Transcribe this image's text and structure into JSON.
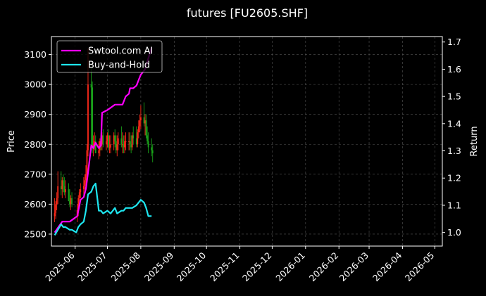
{
  "chart_data": {
    "type": "line",
    "title": "futures [FU2605.SHF]",
    "ylabel_left": "Price",
    "ylabel_right": "Return",
    "ylim_left": [
      2460,
      3160
    ],
    "ylim_right": [
      0.95,
      1.72
    ],
    "xlim": [
      "2025-05-10",
      "2026-05-08"
    ],
    "grid": true,
    "legend_location": "top-left",
    "x_ticks": [
      "2025-06",
      "2025-07",
      "2025-08",
      "2025-09",
      "2025-10",
      "2025-11",
      "2025-12",
      "2026-01",
      "2026-02",
      "2026-03",
      "2026-04",
      "2026-05"
    ],
    "y_ticks_left": [
      2500,
      2600,
      2700,
      2800,
      2900,
      3000,
      3100
    ],
    "y_ticks_right": [
      1.0,
      1.1,
      1.2,
      1.3,
      1.4,
      1.5,
      1.6,
      1.7
    ],
    "colors": {
      "up": "#ff2a1a",
      "down": "#1aa31a",
      "strategy": "#ff00ff",
      "buy_and_hold": "#1ee6f0",
      "grid": "#555555"
    },
    "candles": {
      "dates": [
        "2025-05-13",
        "2025-05-14",
        "2025-05-15",
        "2025-05-16",
        "2025-05-19",
        "2025-05-20",
        "2025-05-21",
        "2025-05-22",
        "2025-05-23",
        "2025-05-26",
        "2025-05-27",
        "2025-05-28",
        "2025-05-29",
        "2025-06-03",
        "2025-06-04",
        "2025-06-05",
        "2025-06-06",
        "2025-06-09",
        "2025-06-10",
        "2025-06-11",
        "2025-06-12",
        "2025-06-13",
        "2025-06-16",
        "2025-06-17",
        "2025-06-18",
        "2025-06-19",
        "2025-06-20",
        "2025-06-23",
        "2025-06-24",
        "2025-06-25",
        "2025-06-26",
        "2025-06-27",
        "2025-06-30",
        "2025-07-01",
        "2025-07-02",
        "2025-07-03",
        "2025-07-04",
        "2025-07-07",
        "2025-07-08",
        "2025-07-09",
        "2025-07-10",
        "2025-07-11",
        "2025-07-14",
        "2025-07-15",
        "2025-07-16",
        "2025-07-17",
        "2025-07-18",
        "2025-07-21",
        "2025-07-22",
        "2025-07-23",
        "2025-07-24",
        "2025-07-25",
        "2025-07-28",
        "2025-07-29",
        "2025-07-30",
        "2025-07-31",
        "2025-08-01",
        "2025-08-04",
        "2025-08-05",
        "2025-08-06",
        "2025-08-07",
        "2025-08-08",
        "2025-08-11",
        "2025-08-12"
      ],
      "open": [
        2560,
        2570,
        2600,
        2620,
        2660,
        2650,
        2680,
        2660,
        2640,
        2650,
        2610,
        2600,
        2620,
        2560,
        2580,
        2620,
        2640,
        2650,
        2660,
        2680,
        2700,
        2780,
        3000,
        2990,
        2790,
        2800,
        2810,
        2770,
        2780,
        2810,
        2800,
        2830,
        2800,
        2810,
        2830,
        2790,
        2790,
        2800,
        2830,
        2810,
        2780,
        2800,
        2820,
        2800,
        2800,
        2790,
        2810,
        2810,
        2810,
        2800,
        2790,
        2830,
        2820,
        2800,
        2840,
        2860,
        2880,
        2890,
        2870,
        2880,
        2830,
        2810,
        2790,
        2780
      ],
      "high": [
        2620,
        2610,
        2640,
        2710,
        2710,
        2690,
        2700,
        2690,
        2680,
        2670,
        2650,
        2630,
        2640,
        2600,
        2630,
        2650,
        2670,
        2690,
        2700,
        2730,
        2800,
        3120,
        3060,
        3010,
        2830,
        2840,
        2830,
        2810,
        2820,
        2830,
        2840,
        2850,
        2830,
        2840,
        2850,
        2830,
        2830,
        2840,
        2850,
        2830,
        2830,
        2840,
        2860,
        2840,
        2830,
        2830,
        2840,
        2840,
        2840,
        2830,
        2840,
        2860,
        2860,
        2850,
        2880,
        2900,
        2930,
        2940,
        2900,
        2900,
        2860,
        2840,
        2820,
        2800
      ],
      "low": [
        2540,
        2550,
        2580,
        2600,
        2630,
        2620,
        2640,
        2630,
        2620,
        2610,
        2590,
        2580,
        2590,
        2540,
        2560,
        2600,
        2620,
        2630,
        2640,
        2660,
        2680,
        2760,
        2780,
        2770,
        2760,
        2780,
        2770,
        2750,
        2760,
        2780,
        2780,
        2790,
        2780,
        2790,
        2780,
        2770,
        2770,
        2780,
        2790,
        2770,
        2760,
        2780,
        2790,
        2770,
        2770,
        2770,
        2780,
        2780,
        2780,
        2770,
        2780,
        2800,
        2790,
        2790,
        2820,
        2840,
        2850,
        2860,
        2830,
        2820,
        2800,
        2770,
        2760,
        2740
      ],
      "close": [
        2570,
        2600,
        2620,
        2660,
        2650,
        2680,
        2660,
        2640,
        2650,
        2610,
        2600,
        2620,
        2600,
        2580,
        2620,
        2640,
        2650,
        2660,
        2680,
        2700,
        2780,
        3000,
        2990,
        2790,
        2800,
        2810,
        2770,
        2780,
        2810,
        2800,
        2830,
        2800,
        2810,
        2830,
        2790,
        2790,
        2800,
        2830,
        2810,
        2780,
        2800,
        2820,
        2800,
        2800,
        2790,
        2810,
        2810,
        2810,
        2800,
        2790,
        2830,
        2820,
        2800,
        2840,
        2860,
        2880,
        2890,
        2870,
        2880,
        2830,
        2810,
        2790,
        2780,
        2770
      ]
    },
    "series": [
      {
        "name": "Swtool.com AI",
        "x": [
          "2025-05-13",
          "2025-05-20",
          "2025-05-27",
          "2025-06-03",
          "2025-06-06",
          "2025-06-09",
          "2025-06-11",
          "2025-06-13",
          "2025-06-16",
          "2025-06-18",
          "2025-06-20",
          "2025-06-23",
          "2025-06-25",
          "2025-06-26",
          "2025-07-01",
          "2025-07-08",
          "2025-07-15",
          "2025-07-18",
          "2025-07-21",
          "2025-07-22",
          "2025-07-25",
          "2025-07-28",
          "2025-07-30",
          "2025-08-01",
          "2025-08-05",
          "2025-08-08",
          "2025-08-11"
        ],
        "values": [
          1.0,
          1.04,
          1.04,
          1.06,
          1.12,
          1.13,
          1.16,
          1.22,
          1.32,
          1.31,
          1.33,
          1.31,
          1.32,
          1.44,
          1.45,
          1.47,
          1.47,
          1.5,
          1.51,
          1.53,
          1.53,
          1.54,
          1.56,
          1.58,
          1.6,
          1.64,
          1.68
        ]
      },
      {
        "name": "Buy-and-Hold",
        "x": [
          "2025-05-13",
          "2025-05-16",
          "2025-05-19",
          "2025-05-21",
          "2025-05-23",
          "2025-05-27",
          "2025-05-29",
          "2025-06-02",
          "2025-06-04",
          "2025-06-06",
          "2025-06-09",
          "2025-06-11",
          "2025-06-13",
          "2025-06-16",
          "2025-06-18",
          "2025-06-20",
          "2025-06-23",
          "2025-06-25",
          "2025-06-27",
          "2025-07-01",
          "2025-07-04",
          "2025-07-08",
          "2025-07-10",
          "2025-07-14",
          "2025-07-16",
          "2025-07-18",
          "2025-07-22",
          "2025-07-24",
          "2025-07-28",
          "2025-07-30",
          "2025-08-01",
          "2025-08-04",
          "2025-08-06",
          "2025-08-08",
          "2025-08-11"
        ],
        "values": [
          0.99,
          1.01,
          1.03,
          1.02,
          1.02,
          1.01,
          1.01,
          1.0,
          1.02,
          1.03,
          1.04,
          1.08,
          1.14,
          1.15,
          1.17,
          1.18,
          1.08,
          1.08,
          1.07,
          1.08,
          1.07,
          1.09,
          1.07,
          1.08,
          1.08,
          1.09,
          1.09,
          1.09,
          1.1,
          1.11,
          1.12,
          1.11,
          1.09,
          1.06,
          1.06
        ]
      }
    ]
  }
}
